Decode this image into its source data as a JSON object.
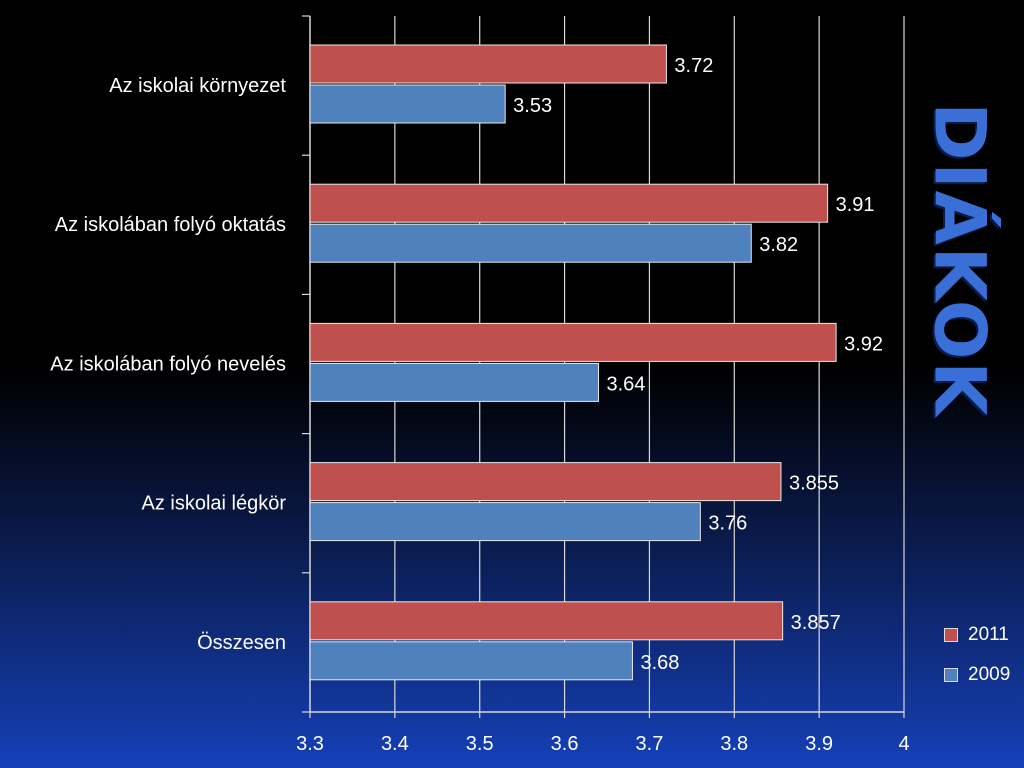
{
  "slide": {
    "side_title": "DIÁKOK"
  },
  "chart_data": {
    "type": "bar",
    "orientation": "horizontal",
    "title": "",
    "xlabel": "",
    "ylabel": "",
    "xlim": [
      3.3,
      4.0
    ],
    "x_ticks": [
      "3.3",
      "3.4",
      "3.5",
      "3.6",
      "3.7",
      "3.8",
      "3.9",
      "4"
    ],
    "grid": true,
    "legend_position": "bottom-right",
    "categories": [
      "Az iskolai környezet",
      "Az iskolában folyó oktatás",
      "Az iskolában folyó nevelés",
      "Az iskolai légkör",
      "Összesen"
    ],
    "series": [
      {
        "name": "2011",
        "color": "#c0504d",
        "values": [
          3.72,
          3.91,
          3.92,
          3.855,
          3.857
        ],
        "labels": [
          "3.72",
          "3.91",
          "3.92",
          "3.855",
          "3.857"
        ]
      },
      {
        "name": "2009",
        "color": "#4f81bd",
        "values": [
          3.53,
          3.82,
          3.64,
          3.76,
          3.68
        ],
        "labels": [
          "3.53",
          "3.82",
          "3.64",
          "3.76",
          "3.68"
        ]
      }
    ]
  }
}
